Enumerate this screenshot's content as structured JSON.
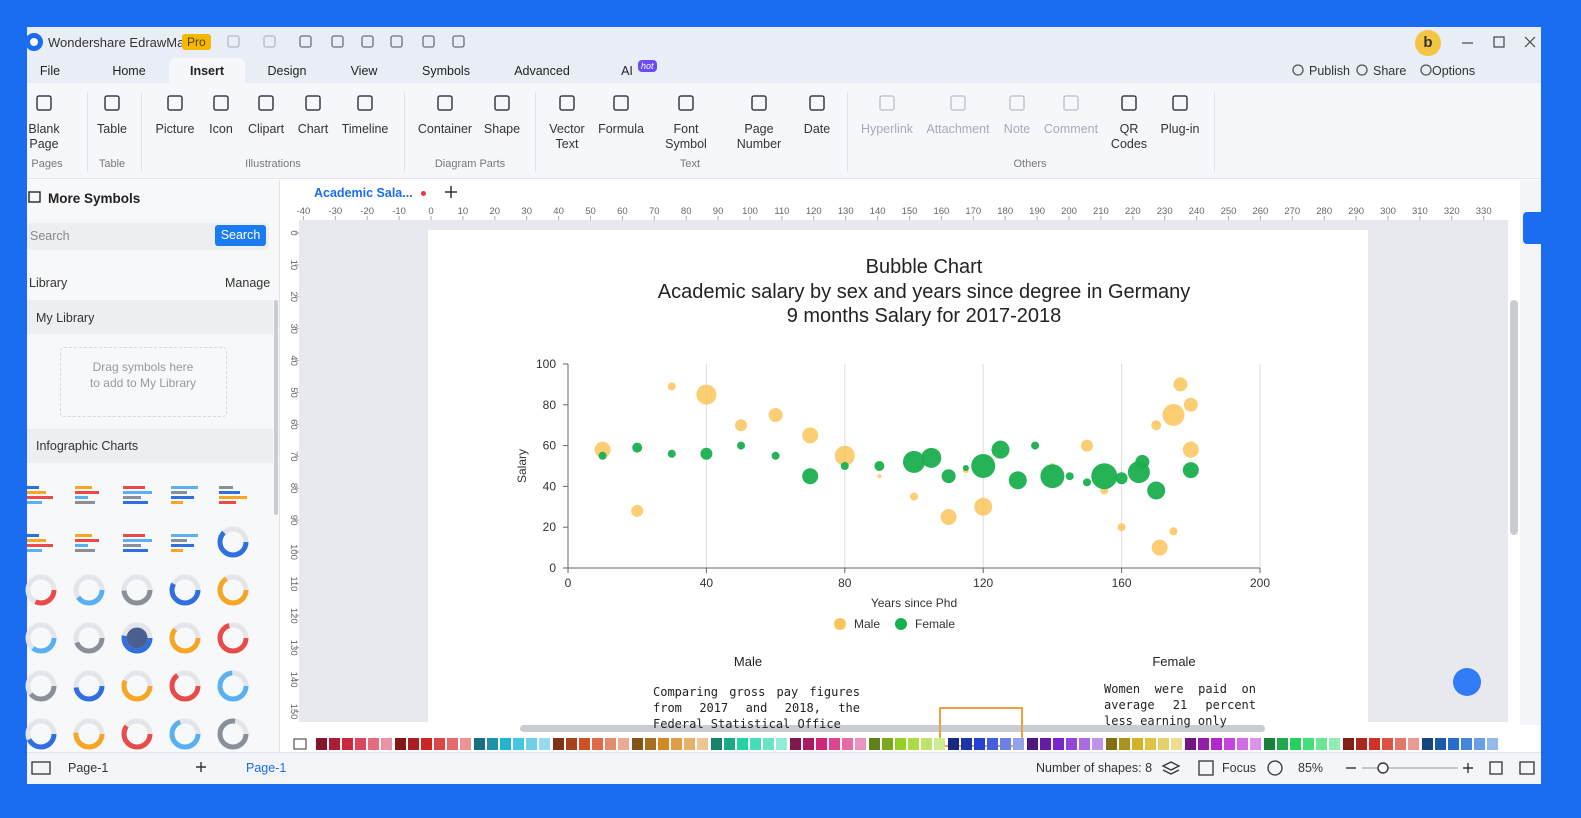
{
  "window": {
    "app_title": "Wondershare EdrawMax",
    "badge": "Pro",
    "avatar": "b"
  },
  "menu": {
    "tabs": [
      "File",
      "Home",
      "Insert",
      "Design",
      "View",
      "Symbols",
      "Advanced",
      "AI"
    ],
    "hot": "hot",
    "actions": [
      "Publish",
      "Share",
      "Options"
    ]
  },
  "ribbon": {
    "items": [
      "Blank Page",
      "Table",
      "Picture",
      "Icon",
      "Clipart",
      "Chart",
      "Timeline",
      "Container",
      "Shape",
      "Vector Text",
      "Formula",
      "Font Symbol",
      "Page Number",
      "Date",
      "Hyperlink",
      "Attachment",
      "Note",
      "Comment",
      "QR Codes",
      "Plug-in"
    ],
    "groups": [
      "Pages",
      "Table",
      "Illustrations",
      "Diagram Parts",
      "Text",
      "Others"
    ]
  },
  "sidebar": {
    "title": "More Symbols",
    "search_placeholder": "Search",
    "search_button": "Search",
    "library": "Library",
    "manage": "Manage",
    "my_library": "My Library",
    "drop_hint": "Drag symbols here to add to My Library",
    "section": "Infographic Charts"
  },
  "document_tab": "Academic Sala...",
  "ruler": {
    "horizontal": [
      -40,
      -30,
      -20,
      -10,
      0,
      10,
      20,
      30,
      40,
      50,
      60,
      70,
      80,
      90,
      100,
      110,
      120,
      130,
      140,
      150,
      160,
      170,
      180,
      190,
      200,
      210,
      220,
      230,
      240,
      250,
      260,
      270,
      280,
      290,
      300,
      310,
      320,
      330
    ],
    "vertical": [
      0,
      10,
      20,
      30,
      40,
      50,
      60,
      70,
      80,
      90,
      100,
      110,
      120,
      130,
      140,
      150
    ]
  },
  "chart_data": {
    "type": "bubble",
    "title": "Bubble Chart",
    "subtitle": [
      "Academic salary by sex and years since degree in Germany",
      "9 months Salary for 2017-2018"
    ],
    "xlabel": "Years since Phd",
    "ylabel": "Salary",
    "xlim": [
      0,
      200
    ],
    "ylim": [
      0,
      100
    ],
    "xticks": [
      0,
      40,
      80,
      120,
      160,
      200
    ],
    "yticks": [
      0,
      20,
      40,
      60,
      80,
      100
    ],
    "grid": "x",
    "series": [
      {
        "name": "Male",
        "color": "#fbc65a",
        "x": [
          10,
          20,
          30,
          40,
          50,
          60,
          70,
          80,
          90,
          100,
          110,
          115,
          120,
          140,
          150,
          155,
          160,
          170,
          171,
          175,
          175,
          177,
          180,
          180
        ],
        "y": [
          58,
          28,
          89,
          85,
          70,
          75,
          65,
          55,
          45,
          35,
          25,
          48,
          30,
          50,
          60,
          38,
          20,
          70,
          10,
          18,
          75,
          90,
          80,
          58
        ],
        "size": [
          8,
          6,
          4,
          10,
          6,
          7,
          8,
          10,
          2,
          4,
          8,
          3,
          9,
          3,
          6,
          4,
          4,
          5,
          8,
          4,
          11,
          7,
          7,
          8
        ]
      },
      {
        "name": "Female",
        "color": "#1aaf4e",
        "x": [
          10,
          20,
          30,
          40,
          50,
          60,
          70,
          80,
          90,
          100,
          105,
          110,
          115,
          120,
          125,
          130,
          135,
          140,
          145,
          150,
          155,
          160,
          165,
          166,
          170,
          180
        ],
        "y": [
          55,
          59,
          56,
          56,
          60,
          55,
          45,
          50,
          50,
          52,
          54,
          45,
          49,
          50,
          58,
          43,
          60,
          45,
          45,
          42,
          45,
          44,
          47,
          52,
          38,
          48
        ],
        "size": [
          4,
          5,
          4,
          6,
          4,
          4,
          8,
          4,
          5,
          11,
          10,
          7,
          3,
          12,
          9,
          9,
          4,
          12,
          4,
          4,
          13,
          6,
          11,
          7,
          9,
          8
        ]
      }
    ]
  },
  "page_text": {
    "male_heading": "Male",
    "male_body": "Comparing gross pay figures from 2017 and 2018, the Federal Statistical Office",
    "female_heading": "Female",
    "female_body": "Women were paid on average 21 percent less earning only"
  },
  "status_bar": {
    "page_selector": "Page-1",
    "page_tab": "Page-1",
    "shape_count": "Number of shapes: 8",
    "focus": "Focus",
    "zoom": "85%"
  }
}
